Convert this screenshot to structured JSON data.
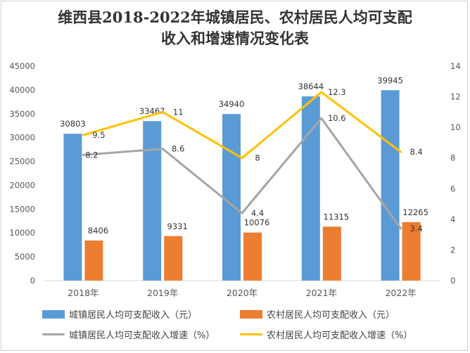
{
  "chart_data": {
    "type": "bar",
    "title_line1": "维西县2018-2022年城镇居民、农村居民人均可支配收入和增速情况变化表",
    "title_line2": "",
    "categories": [
      "2018年",
      "2019年",
      "2020年",
      "2021年",
      "2022年"
    ],
    "series": [
      {
        "name": "城镇居民人均可支配收入（元）",
        "type": "bar",
        "axis": "left",
        "color": "#5B9BD5",
        "values": [
          30803,
          33467,
          34940,
          38644,
          39945
        ]
      },
      {
        "name": "农村居民人均可支配收入（元）",
        "type": "bar",
        "axis": "left",
        "color": "#ED7D31",
        "values": [
          8406,
          9331,
          10076,
          11315,
          12265
        ]
      },
      {
        "name": "城镇居民人均可支配收入增速（%）",
        "type": "line",
        "axis": "right",
        "color": "#A5A5A5",
        "values": [
          8.2,
          8.6,
          4.4,
          10.6,
          3.4
        ]
      },
      {
        "name": "农村居民人均可支配收入增速（%）",
        "type": "line",
        "axis": "right",
        "color": "#FFC000",
        "values": [
          9.5,
          11,
          8,
          12.3,
          8.4
        ]
      }
    ],
    "left_axis": {
      "range": [
        0,
        45000
      ],
      "ticks": [
        "0",
        "5000",
        "10000",
        "15000",
        "20000",
        "25000",
        "30000",
        "35000",
        "40000",
        "45000"
      ]
    },
    "right_axis": {
      "range": [
        0,
        14
      ],
      "ticks": [
        "0",
        "2",
        "4",
        "6",
        "8",
        "10",
        "12",
        "14"
      ]
    },
    "grid": false,
    "legend_position": "bottom"
  }
}
